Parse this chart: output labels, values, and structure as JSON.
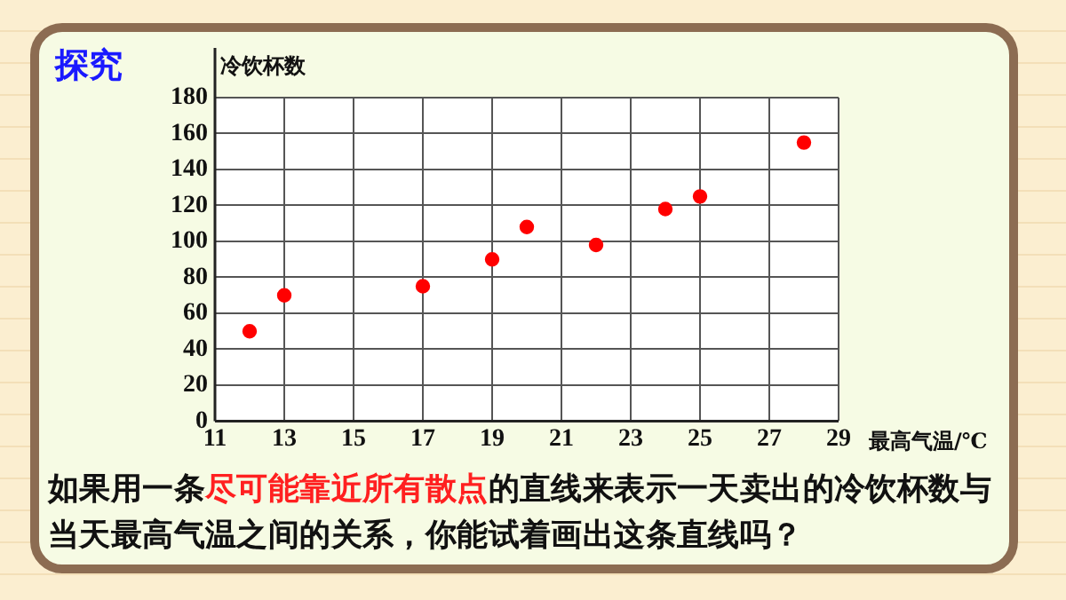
{
  "chart_data": {
    "type": "scatter",
    "title": "探究",
    "xlabel": "最高气温/℃",
    "ylabel": "冷饮杯数",
    "x": [
      12,
      13,
      17,
      19,
      20,
      22,
      24,
      25,
      28
    ],
    "values": [
      50,
      70,
      75,
      90,
      108,
      98,
      118,
      125,
      155
    ],
    "color": "#ff0000",
    "marker": "circle",
    "xlim": [
      11,
      29
    ],
    "xticks": [
      11,
      13,
      15,
      17,
      19,
      21,
      23,
      25,
      27,
      29
    ],
    "ylim": [
      0,
      180
    ],
    "yticks": [
      0,
      20,
      40,
      60,
      80,
      100,
      120,
      140,
      160,
      180
    ],
    "grid": true,
    "annotations": [
      "如果用一条",
      "尽可能靠近所有散点",
      "的直线来表示一天卖出的冷饮杯数与当天最高气温之间的关系，你能试着画出这条直线吗？"
    ]
  }
}
